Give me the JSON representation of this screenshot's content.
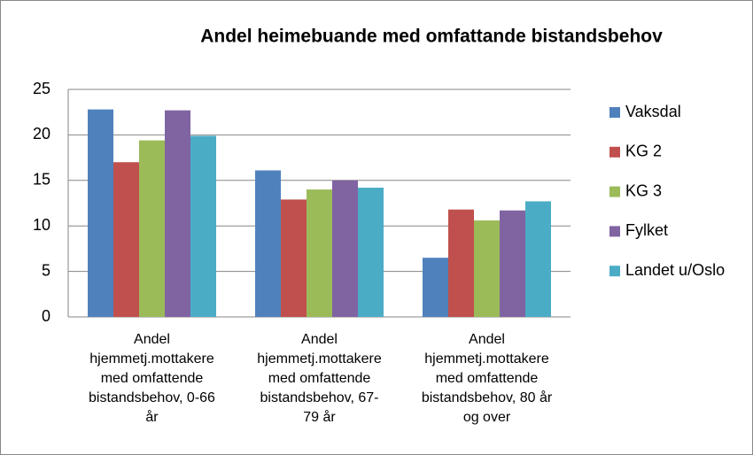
{
  "chart_data": {
    "type": "bar",
    "title": "Andel heimebuande med omfattande bistandsbehov",
    "categories": [
      "Andel hjemmetj.mottakere med omfattende bistandsbehov, 0-66 år",
      "Andel hjemmetj.mottakere med omfattende bistandsbehov, 67-79 år",
      "Andel hjemmetj.mottakere med omfattende bistandsbehov, 80 år og over"
    ],
    "series": [
      {
        "name": "Vaksdal",
        "color": "#4f81bd",
        "values": [
          22.8,
          16.1,
          6.5
        ]
      },
      {
        "name": "KG 2",
        "color": "#c0504d",
        "values": [
          17.0,
          12.9,
          11.8
        ]
      },
      {
        "name": "KG 3",
        "color": "#9bbb59",
        "values": [
          19.4,
          14.0,
          10.6
        ]
      },
      {
        "name": "Fylket",
        "color": "#8064a2",
        "values": [
          22.7,
          15.0,
          11.7
        ]
      },
      {
        "name": "Landet u/Oslo",
        "color": "#4bacc6",
        "values": [
          19.9,
          14.2,
          12.7
        ]
      }
    ],
    "ylim": [
      0,
      25
    ],
    "yticks": [
      0,
      5,
      10,
      15,
      20,
      25
    ],
    "grid": true,
    "legend": "right"
  }
}
